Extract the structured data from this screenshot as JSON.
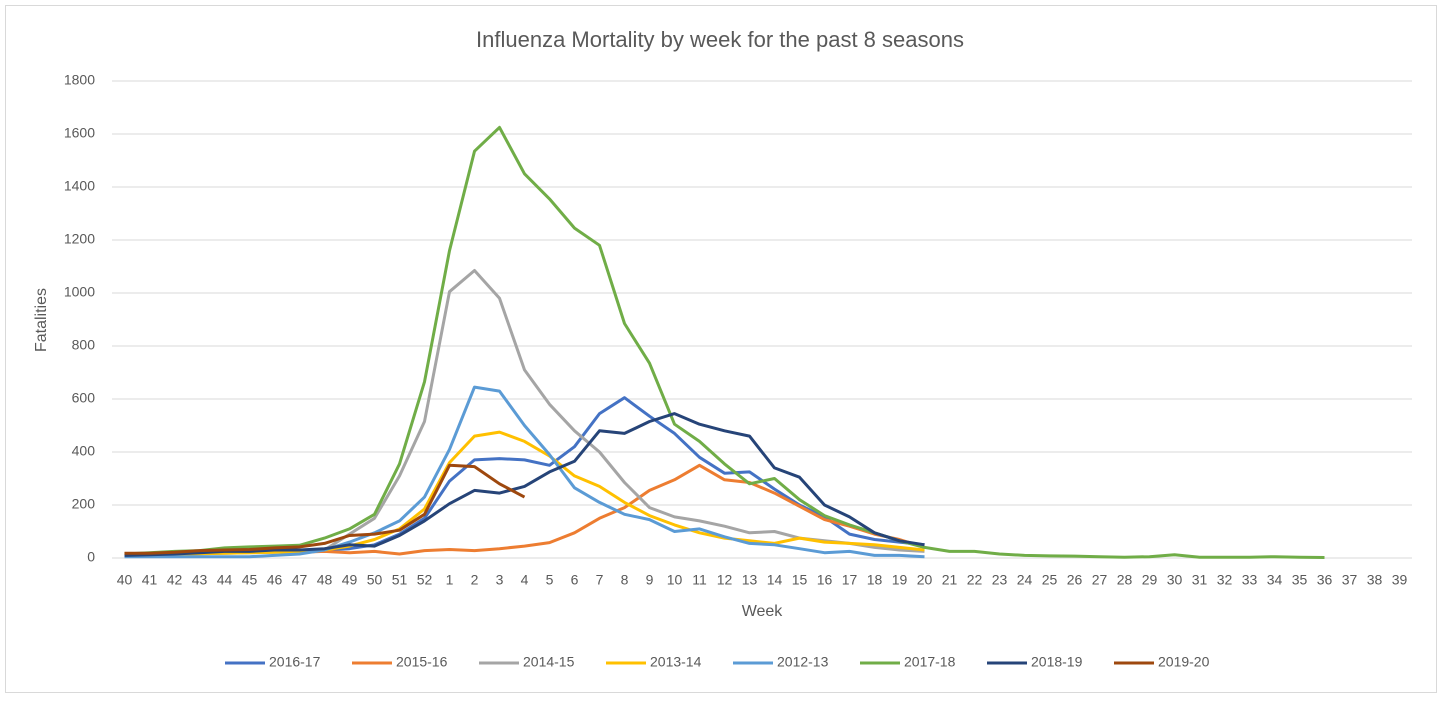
{
  "chart_data": {
    "type": "line",
    "title": "Influenza Mortality by week for the past 8 seasons",
    "x_label": "Week",
    "y_label": "Fatalities",
    "categories": [
      "40",
      "41",
      "42",
      "43",
      "44",
      "45",
      "46",
      "47",
      "48",
      "49",
      "50",
      "51",
      "52",
      "1",
      "2",
      "3",
      "4",
      "5",
      "6",
      "7",
      "8",
      "9",
      "10",
      "11",
      "12",
      "13",
      "14",
      "15",
      "16",
      "17",
      "18",
      "19",
      "20",
      "21",
      "22",
      "23",
      "24",
      "25",
      "26",
      "27",
      "28",
      "29",
      "30",
      "31",
      "32",
      "33",
      "34",
      "35",
      "36",
      "37",
      "38",
      "39"
    ],
    "ylim": [
      0,
      1800
    ],
    "yticks": [
      0,
      200,
      400,
      600,
      800,
      1000,
      1200,
      1400,
      1600,
      1800
    ],
    "grid": true,
    "legend": "bottom",
    "series": [
      {
        "name": "2016-17",
        "color": "#4472c4",
        "values": [
          10,
          12,
          15,
          18,
          20,
          22,
          25,
          28,
          30,
          35,
          50,
          90,
          150,
          290,
          370,
          375,
          370,
          350,
          420,
          545,
          605,
          535,
          470,
          380,
          320,
          325,
          260,
          200,
          155,
          90,
          70,
          60,
          50,
          null,
          null,
          null,
          null,
          null,
          null,
          null,
          null,
          null,
          null,
          null,
          null,
          null,
          null,
          null,
          null,
          null,
          null,
          null
        ]
      },
      {
        "name": "2015-16",
        "color": "#ed7d31",
        "values": [
          15,
          18,
          20,
          22,
          25,
          25,
          25,
          22,
          25,
          20,
          25,
          15,
          28,
          32,
          28,
          35,
          45,
          58,
          95,
          150,
          190,
          255,
          295,
          350,
          295,
          285,
          245,
          195,
          145,
          120,
          90,
          70,
          40,
          null,
          null,
          null,
          null,
          null,
          null,
          null,
          null,
          null,
          null,
          null,
          null,
          null,
          null,
          null,
          null,
          null,
          null,
          null
        ]
      },
      {
        "name": "2014-15",
        "color": "#a5a5a5",
        "values": [
          10,
          12,
          14,
          16,
          18,
          20,
          22,
          25,
          30,
          90,
          150,
          310,
          515,
          1005,
          1085,
          980,
          710,
          580,
          480,
          400,
          285,
          190,
          155,
          140,
          120,
          95,
          100,
          75,
          65,
          55,
          40,
          30,
          25,
          null,
          null,
          null,
          null,
          null,
          null,
          null,
          null,
          null,
          null,
          null,
          null,
          null,
          null,
          null,
          null,
          null,
          null,
          null
        ]
      },
      {
        "name": "2013-14",
        "color": "#ffc000",
        "values": [
          10,
          12,
          14,
          16,
          18,
          20,
          22,
          25,
          30,
          45,
          70,
          110,
          185,
          360,
          460,
          475,
          440,
          385,
          310,
          270,
          210,
          160,
          125,
          95,
          75,
          65,
          55,
          75,
          60,
          55,
          50,
          40,
          30,
          null,
          null,
          null,
          null,
          null,
          null,
          null,
          null,
          null,
          null,
          null,
          null,
          null,
          null,
          null,
          null,
          null,
          null,
          null
        ]
      },
      {
        "name": "2012-13",
        "color": "#5b9bd5",
        "values": [
          5,
          5,
          5,
          5,
          5,
          5,
          10,
          15,
          30,
          60,
          95,
          140,
          230,
          410,
          645,
          630,
          500,
          390,
          265,
          210,
          165,
          145,
          100,
          110,
          80,
          55,
          50,
          35,
          20,
          25,
          10,
          10,
          5,
          null,
          null,
          null,
          null,
          null,
          null,
          null,
          null,
          null,
          null,
          null,
          null,
          null,
          null,
          null,
          null,
          null,
          null,
          null
        ]
      },
      {
        "name": "2017-18",
        "color": "#70ad47",
        "values": [
          15,
          20,
          25,
          28,
          38,
          42,
          45,
          48,
          75,
          110,
          165,
          355,
          665,
          1160,
          1535,
          1625,
          1450,
          1355,
          1245,
          1180,
          885,
          735,
          505,
          440,
          355,
          280,
          300,
          220,
          160,
          125,
          95,
          65,
          40,
          25,
          25,
          15,
          10,
          8,
          7,
          5,
          3,
          5,
          12,
          3,
          3,
          3,
          5,
          3,
          2,
          null,
          null,
          null
        ]
      },
      {
        "name": "2018-19",
        "color": "#264478",
        "values": [
          10,
          12,
          15,
          20,
          25,
          25,
          30,
          30,
          35,
          50,
          45,
          85,
          140,
          205,
          255,
          245,
          270,
          325,
          365,
          480,
          470,
          515,
          545,
          505,
          480,
          460,
          340,
          305,
          200,
          155,
          95,
          65,
          50,
          null,
          null,
          null,
          null,
          null,
          null,
          null,
          null,
          null,
          null,
          null,
          null,
          null,
          null,
          null,
          null,
          null,
          null,
          null
        ]
      },
      {
        "name": "2019-20",
        "color": "#9e480e",
        "values": [
          18,
          18,
          22,
          28,
          30,
          32,
          38,
          42,
          55,
          85,
          90,
          105,
          165,
          350,
          345,
          280,
          230,
          null,
          null,
          null,
          null,
          null,
          null,
          null,
          null,
          null,
          null,
          null,
          null,
          null,
          null,
          null,
          null,
          null,
          null,
          null,
          null,
          null,
          null,
          null,
          null,
          null,
          null,
          null,
          null,
          null,
          null,
          null,
          null,
          null,
          null,
          null
        ]
      }
    ]
  }
}
